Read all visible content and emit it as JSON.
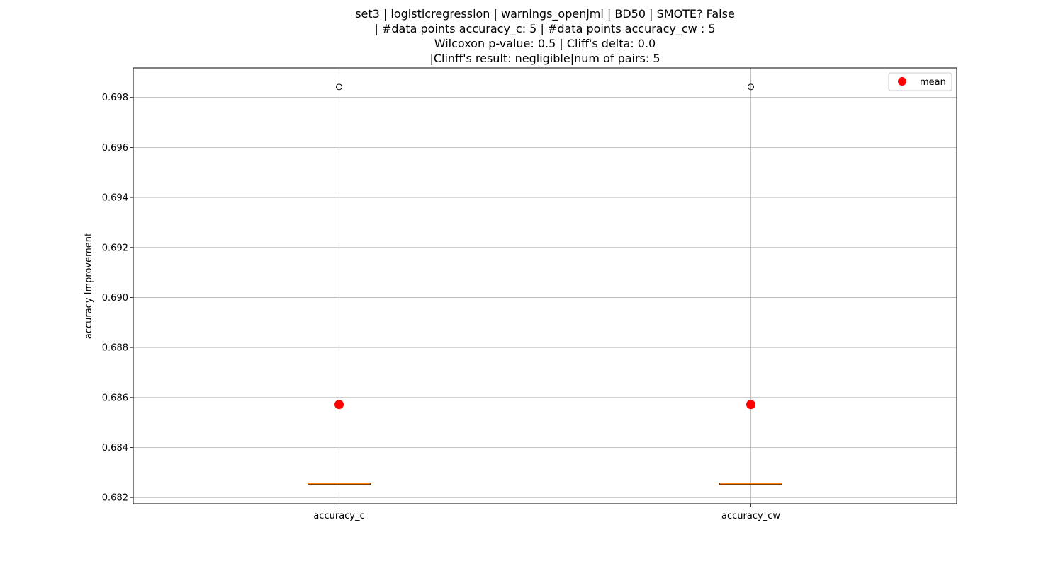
{
  "chart_data": {
    "type": "box",
    "title_lines": [
      "set3 | logisticregression | warnings_openjml | BD50 | SMOTE? False",
      "| #data points accuracy_c: 5 | #data points accuracy_cw : 5",
      "Wilcoxon p-value: 0.5 | Cliff's delta: 0.0",
      "|Clinff's result: negligible|num of pairs: 5"
    ],
    "xlabel": "",
    "ylabel": "accuracy Improvement",
    "categories": [
      "accuracy_c",
      "accuracy_cw"
    ],
    "ylim": [
      0.68175,
      0.69918
    ],
    "yticks": [
      0.682,
      0.684,
      0.686,
      0.688,
      0.69,
      0.692,
      0.694,
      0.696,
      0.698
    ],
    "ytick_labels": [
      "0.682",
      "0.684",
      "0.686",
      "0.688",
      "0.690",
      "0.692",
      "0.694",
      "0.696",
      "0.698"
    ],
    "grid": true,
    "legend": {
      "position": "top-right",
      "entries": [
        {
          "label": "mean",
          "color": "#ff0000",
          "marker": "circle"
        }
      ]
    },
    "series": [
      {
        "category": "accuracy_c",
        "q1": 0.68255,
        "median": 0.68255,
        "q3": 0.68255,
        "whisker_low": 0.68255,
        "whisker_high": 0.68255,
        "outliers": [
          0.69842
        ],
        "mean": 0.68572
      },
      {
        "category": "accuracy_cw",
        "q1": 0.68255,
        "median": 0.68255,
        "q3": 0.68255,
        "whisker_low": 0.68255,
        "whisker_high": 0.68255,
        "outliers": [
          0.69842
        ],
        "mean": 0.68572
      }
    ],
    "colors": {
      "median": "#ff7f0e",
      "box": "#000000",
      "mean_marker": "#ff0000",
      "grid": "#b0b0b0"
    }
  }
}
